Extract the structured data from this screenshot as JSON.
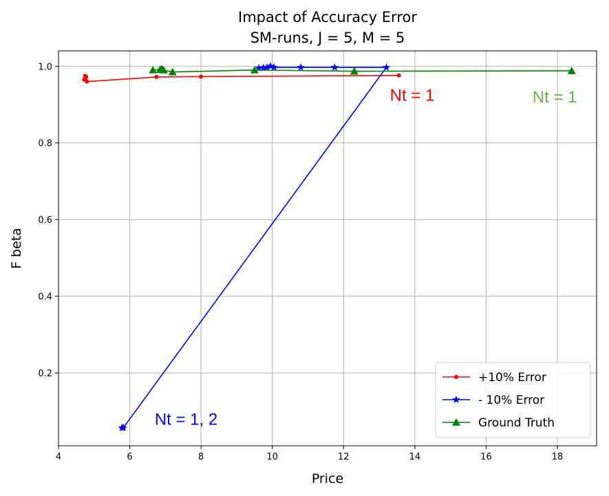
{
  "chart_data": {
    "type": "line",
    "title": "Impact of Accuracy Error",
    "subtitle": "SM-runs, J = 5, M = 5",
    "xlabel": "Price",
    "ylabel": "F beta",
    "xlim": [
      4,
      19.1
    ],
    "ylim": [
      0.01,
      1.04
    ],
    "xticks": [
      "4",
      "6",
      "8",
      "10",
      "12",
      "14",
      "16",
      "18"
    ],
    "yticks": [
      "0.2",
      "0.4",
      "0.6",
      "0.8",
      "1.0"
    ],
    "grid": true,
    "legend_position": "bottom-right",
    "series": [
      {
        "name": "+10% Error",
        "color": "#ff0000",
        "marker": "dot",
        "points": [
          [
            4.72,
            0.965
          ],
          [
            4.75,
            0.975
          ],
          [
            4.78,
            0.972
          ],
          [
            4.8,
            0.96
          ],
          [
            6.75,
            0.972
          ],
          [
            8.0,
            0.973
          ],
          [
            13.55,
            0.976
          ]
        ]
      },
      {
        "name": "- 10% Error",
        "color": "#0000ff",
        "marker": "star",
        "points": [
          [
            5.78,
            0.057
          ],
          [
            5.82,
            0.057
          ],
          [
            13.2,
            0.997
          ],
          [
            11.75,
            0.997
          ],
          [
            10.8,
            0.997
          ],
          [
            10.05,
            0.997
          ],
          [
            9.95,
            1.0
          ],
          [
            9.85,
            0.997
          ],
          [
            9.75,
            0.996
          ],
          [
            9.62,
            0.995
          ]
        ]
      },
      {
        "name": "Ground Truth",
        "color": "#008000",
        "marker": "triangle",
        "points": [
          [
            6.65,
            0.99
          ],
          [
            6.85,
            0.991
          ],
          [
            6.9,
            0.993
          ],
          [
            6.95,
            0.99
          ],
          [
            7.2,
            0.985
          ],
          [
            9.5,
            0.99
          ],
          [
            12.3,
            0.987
          ],
          [
            18.4,
            0.988
          ]
        ]
      }
    ],
    "annotations": [
      {
        "text": "Nt = 1",
        "x": 13.3,
        "y": 0.91,
        "color": "#ff0000"
      },
      {
        "text": "Nt = 1",
        "x": 17.3,
        "y": 0.905,
        "color": "#6ab04c"
      },
      {
        "text": "Nt = 1, 2",
        "x": 6.7,
        "y": 0.065,
        "color": "#0000ff"
      }
    ]
  }
}
